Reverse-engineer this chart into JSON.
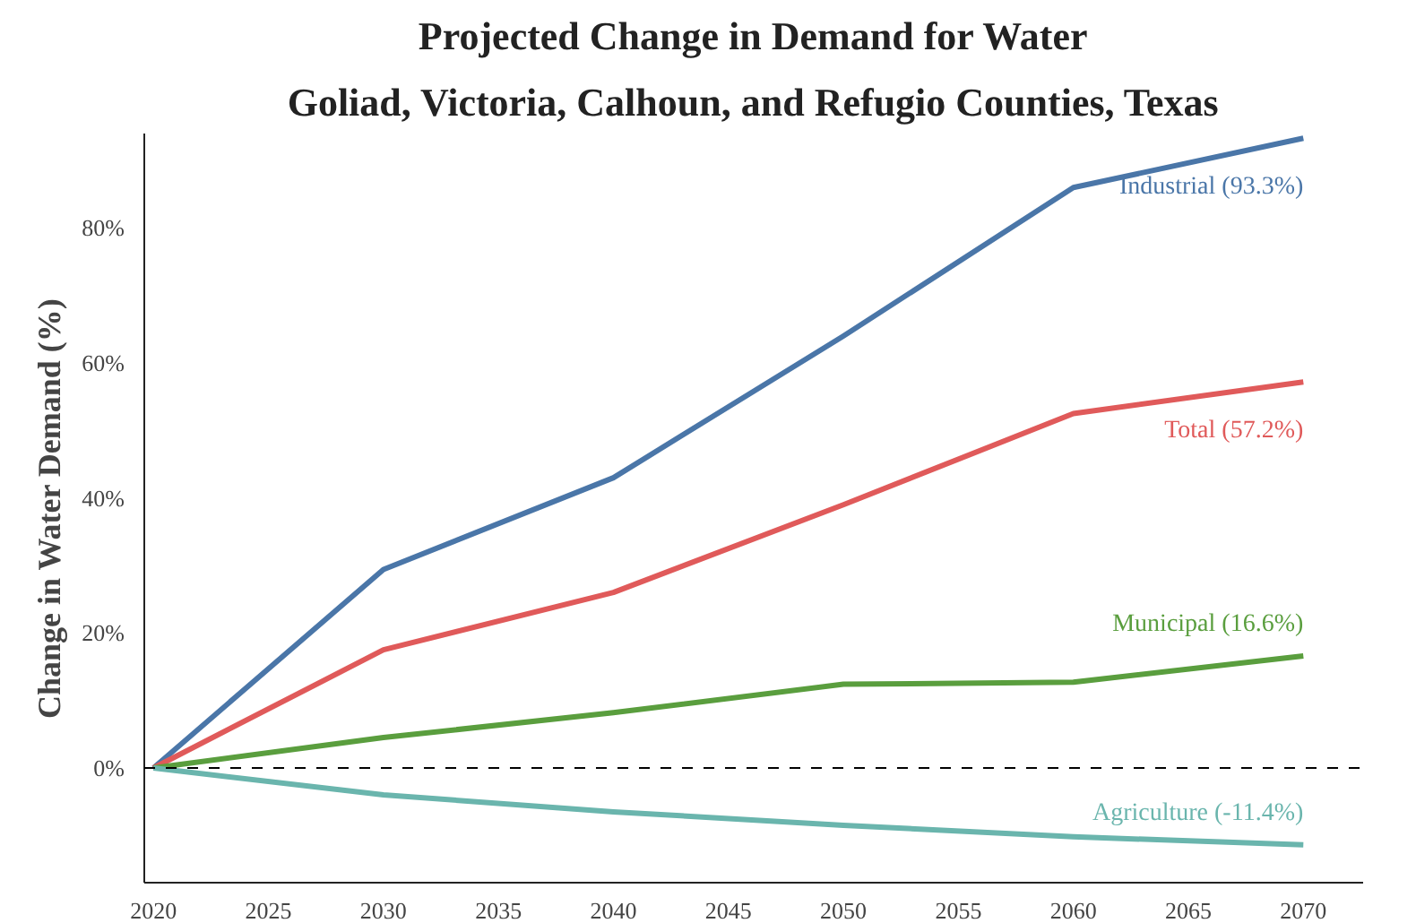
{
  "chart_data": {
    "type": "line",
    "title": "Projected Change in Demand for Water",
    "subtitle": "Goliad, Victoria, Calhoun, and Refugio Counties, Texas",
    "ylabel": "Change in Water Demand (%)",
    "x": [
      2020,
      2030,
      2040,
      2050,
      2060,
      2070
    ],
    "series": [
      {
        "name": "Industrial (93.3%)",
        "color": "#4a76a8",
        "values": [
          0,
          29.4,
          43,
          64,
          86,
          93.3
        ]
      },
      {
        "name": "Total (57.2%)",
        "color": "#e05a5a",
        "values": [
          0,
          17.5,
          26,
          39,
          52.5,
          57.2
        ]
      },
      {
        "name": "Municipal (16.6%)",
        "color": "#5a9e3e",
        "values": [
          0,
          4.5,
          8.2,
          12.4,
          12.7,
          16.6
        ]
      },
      {
        "name": "Agriculture (-11.4%)",
        "color": "#6ab5ad",
        "values": [
          0,
          -4,
          -6.5,
          -8.5,
          -10.2,
          -11.4
        ]
      }
    ],
    "xlim": [
      2019.6,
      2072.6
    ],
    "ylim": [
      -17,
      94
    ],
    "xticks": [
      2020,
      2025,
      2030,
      2035,
      2040,
      2045,
      2050,
      2055,
      2060,
      2065,
      2070
    ],
    "yticks": [
      {
        "value": 0,
        "label": "0%"
      },
      {
        "value": 20,
        "label": "20%"
      },
      {
        "value": 40,
        "label": "40%"
      },
      {
        "value": 60,
        "label": "60%"
      },
      {
        "value": 80,
        "label": "80%"
      }
    ],
    "ref_lines": [
      {
        "axis": "y",
        "value": 0,
        "color": "#000000",
        "line_style": "dashed"
      }
    ],
    "grid": false,
    "legend": false,
    "marker": "none",
    "line_style": "solid"
  }
}
